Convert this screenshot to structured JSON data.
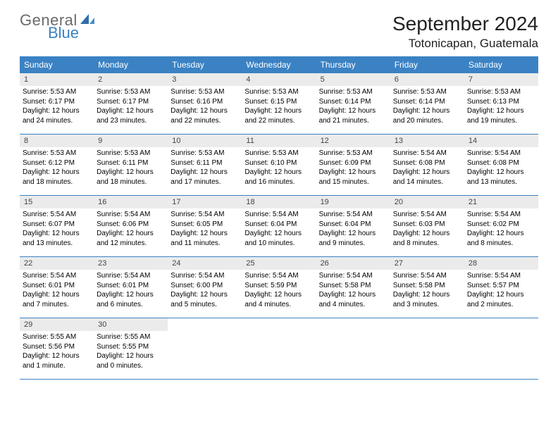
{
  "logo": {
    "text_general": "General",
    "text_blue": "Blue",
    "sail_color": "#2e6fa8"
  },
  "title": {
    "month": "September 2024",
    "location": "Totonicapan, Guatemala"
  },
  "colors": {
    "header_bg": "#3b82c4",
    "header_text": "#ffffff",
    "daynum_bg": "#ebebeb",
    "border": "#3b82c4"
  },
  "day_headers": [
    "Sunday",
    "Monday",
    "Tuesday",
    "Wednesday",
    "Thursday",
    "Friday",
    "Saturday"
  ],
  "weeks": [
    [
      {
        "num": "1",
        "lines": [
          "Sunrise: 5:53 AM",
          "Sunset: 6:17 PM",
          "Daylight: 12 hours",
          "and 24 minutes."
        ]
      },
      {
        "num": "2",
        "lines": [
          "Sunrise: 5:53 AM",
          "Sunset: 6:17 PM",
          "Daylight: 12 hours",
          "and 23 minutes."
        ]
      },
      {
        "num": "3",
        "lines": [
          "Sunrise: 5:53 AM",
          "Sunset: 6:16 PM",
          "Daylight: 12 hours",
          "and 22 minutes."
        ]
      },
      {
        "num": "4",
        "lines": [
          "Sunrise: 5:53 AM",
          "Sunset: 6:15 PM",
          "Daylight: 12 hours",
          "and 22 minutes."
        ]
      },
      {
        "num": "5",
        "lines": [
          "Sunrise: 5:53 AM",
          "Sunset: 6:14 PM",
          "Daylight: 12 hours",
          "and 21 minutes."
        ]
      },
      {
        "num": "6",
        "lines": [
          "Sunrise: 5:53 AM",
          "Sunset: 6:14 PM",
          "Daylight: 12 hours",
          "and 20 minutes."
        ]
      },
      {
        "num": "7",
        "lines": [
          "Sunrise: 5:53 AM",
          "Sunset: 6:13 PM",
          "Daylight: 12 hours",
          "and 19 minutes."
        ]
      }
    ],
    [
      {
        "num": "8",
        "lines": [
          "Sunrise: 5:53 AM",
          "Sunset: 6:12 PM",
          "Daylight: 12 hours",
          "and 18 minutes."
        ]
      },
      {
        "num": "9",
        "lines": [
          "Sunrise: 5:53 AM",
          "Sunset: 6:11 PM",
          "Daylight: 12 hours",
          "and 18 minutes."
        ]
      },
      {
        "num": "10",
        "lines": [
          "Sunrise: 5:53 AM",
          "Sunset: 6:11 PM",
          "Daylight: 12 hours",
          "and 17 minutes."
        ]
      },
      {
        "num": "11",
        "lines": [
          "Sunrise: 5:53 AM",
          "Sunset: 6:10 PM",
          "Daylight: 12 hours",
          "and 16 minutes."
        ]
      },
      {
        "num": "12",
        "lines": [
          "Sunrise: 5:53 AM",
          "Sunset: 6:09 PM",
          "Daylight: 12 hours",
          "and 15 minutes."
        ]
      },
      {
        "num": "13",
        "lines": [
          "Sunrise: 5:54 AM",
          "Sunset: 6:08 PM",
          "Daylight: 12 hours",
          "and 14 minutes."
        ]
      },
      {
        "num": "14",
        "lines": [
          "Sunrise: 5:54 AM",
          "Sunset: 6:08 PM",
          "Daylight: 12 hours",
          "and 13 minutes."
        ]
      }
    ],
    [
      {
        "num": "15",
        "lines": [
          "Sunrise: 5:54 AM",
          "Sunset: 6:07 PM",
          "Daylight: 12 hours",
          "and 13 minutes."
        ]
      },
      {
        "num": "16",
        "lines": [
          "Sunrise: 5:54 AM",
          "Sunset: 6:06 PM",
          "Daylight: 12 hours",
          "and 12 minutes."
        ]
      },
      {
        "num": "17",
        "lines": [
          "Sunrise: 5:54 AM",
          "Sunset: 6:05 PM",
          "Daylight: 12 hours",
          "and 11 minutes."
        ]
      },
      {
        "num": "18",
        "lines": [
          "Sunrise: 5:54 AM",
          "Sunset: 6:04 PM",
          "Daylight: 12 hours",
          "and 10 minutes."
        ]
      },
      {
        "num": "19",
        "lines": [
          "Sunrise: 5:54 AM",
          "Sunset: 6:04 PM",
          "Daylight: 12 hours",
          "and 9 minutes."
        ]
      },
      {
        "num": "20",
        "lines": [
          "Sunrise: 5:54 AM",
          "Sunset: 6:03 PM",
          "Daylight: 12 hours",
          "and 8 minutes."
        ]
      },
      {
        "num": "21",
        "lines": [
          "Sunrise: 5:54 AM",
          "Sunset: 6:02 PM",
          "Daylight: 12 hours",
          "and 8 minutes."
        ]
      }
    ],
    [
      {
        "num": "22",
        "lines": [
          "Sunrise: 5:54 AM",
          "Sunset: 6:01 PM",
          "Daylight: 12 hours",
          "and 7 minutes."
        ]
      },
      {
        "num": "23",
        "lines": [
          "Sunrise: 5:54 AM",
          "Sunset: 6:01 PM",
          "Daylight: 12 hours",
          "and 6 minutes."
        ]
      },
      {
        "num": "24",
        "lines": [
          "Sunrise: 5:54 AM",
          "Sunset: 6:00 PM",
          "Daylight: 12 hours",
          "and 5 minutes."
        ]
      },
      {
        "num": "25",
        "lines": [
          "Sunrise: 5:54 AM",
          "Sunset: 5:59 PM",
          "Daylight: 12 hours",
          "and 4 minutes."
        ]
      },
      {
        "num": "26",
        "lines": [
          "Sunrise: 5:54 AM",
          "Sunset: 5:58 PM",
          "Daylight: 12 hours",
          "and 4 minutes."
        ]
      },
      {
        "num": "27",
        "lines": [
          "Sunrise: 5:54 AM",
          "Sunset: 5:58 PM",
          "Daylight: 12 hours",
          "and 3 minutes."
        ]
      },
      {
        "num": "28",
        "lines": [
          "Sunrise: 5:54 AM",
          "Sunset: 5:57 PM",
          "Daylight: 12 hours",
          "and 2 minutes."
        ]
      }
    ],
    [
      {
        "num": "29",
        "lines": [
          "Sunrise: 5:55 AM",
          "Sunset: 5:56 PM",
          "Daylight: 12 hours",
          "and 1 minute."
        ]
      },
      {
        "num": "30",
        "lines": [
          "Sunrise: 5:55 AM",
          "Sunset: 5:55 PM",
          "Daylight: 12 hours",
          "and 0 minutes."
        ]
      },
      null,
      null,
      null,
      null,
      null
    ]
  ]
}
